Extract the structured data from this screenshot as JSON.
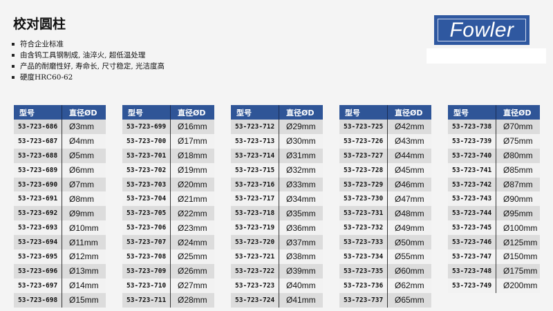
{
  "title": "校对圆柱",
  "bullets": [
    "符合企业标准",
    "由含钨工具钢制成, 油淬火, 超低温处理",
    "产品的耐磨性好, 寿命长, 尺寸稳定, 光洁度高",
    "硬度HRC60-62"
  ],
  "logo_text": "Fowler",
  "colors": {
    "header": "#2f5597",
    "row_dark": "#dcdcdc",
    "row_light": "#f2f2f2",
    "logo": "#2f58a0"
  },
  "headers": {
    "model": "型号",
    "diameter": "直径ØD"
  },
  "tables": [
    [
      [
        "53-723-686",
        "Ø3mm"
      ],
      [
        "53-723-687",
        "Ø4mm"
      ],
      [
        "53-723-688",
        "Ø5mm"
      ],
      [
        "53-723-689",
        "Ø6mm"
      ],
      [
        "53-723-690",
        "Ø7mm"
      ],
      [
        "53-723-691",
        "Ø8mm"
      ],
      [
        "53-723-692",
        "Ø9mm"
      ],
      [
        "53-723-693",
        "Ø10mm"
      ],
      [
        "53-723-694",
        "Ø11mm"
      ],
      [
        "53-723-695",
        "Ø12mm"
      ],
      [
        "53-723-696",
        "Ø13mm"
      ],
      [
        "53-723-697",
        "Ø14mm"
      ],
      [
        "53-723-698",
        "Ø15mm"
      ]
    ],
    [
      [
        "53-723-699",
        "Ø16mm"
      ],
      [
        "53-723-700",
        "Ø17mm"
      ],
      [
        "53-723-701",
        "Ø18mm"
      ],
      [
        "53-723-702",
        "Ø19mm"
      ],
      [
        "53-723-703",
        "Ø20mm"
      ],
      [
        "53-723-704",
        "Ø21mm"
      ],
      [
        "53-723-705",
        "Ø22mm"
      ],
      [
        "53-723-706",
        "Ø23mm"
      ],
      [
        "53-723-707",
        "Ø24mm"
      ],
      [
        "53-723-708",
        "Ø25mm"
      ],
      [
        "53-723-709",
        "Ø26mm"
      ],
      [
        "53-723-710",
        "Ø27mm"
      ],
      [
        "53-723-711",
        "Ø28mm"
      ]
    ],
    [
      [
        "53-723-712",
        "Ø29mm"
      ],
      [
        "53-723-713",
        "Ø30mm"
      ],
      [
        "53-723-714",
        "Ø31mm"
      ],
      [
        "53-723-715",
        "Ø32mm"
      ],
      [
        "53-723-716",
        "Ø33mm"
      ],
      [
        "53-723-717",
        "Ø34mm"
      ],
      [
        "53-723-718",
        "Ø35mm"
      ],
      [
        "53-723-719",
        "Ø36mm"
      ],
      [
        "53-723-720",
        "Ø37mm"
      ],
      [
        "53-723-721",
        "Ø38mm"
      ],
      [
        "53-723-722",
        "Ø39mm"
      ],
      [
        "53-723-723",
        "Ø40mm"
      ],
      [
        "53-723-724",
        "Ø41mm"
      ]
    ],
    [
      [
        "53-723-725",
        "Ø42mm"
      ],
      [
        "53-723-726",
        "Ø43mm"
      ],
      [
        "53-723-727",
        "Ø44mm"
      ],
      [
        "53-723-728",
        "Ø45mm"
      ],
      [
        "53-723-729",
        "Ø46mm"
      ],
      [
        "53-723-730",
        "Ø47mm"
      ],
      [
        "53-723-731",
        "Ø48mm"
      ],
      [
        "53-723-732",
        "Ø49mm"
      ],
      [
        "53-723-733",
        "Ø50mm"
      ],
      [
        "53-723-734",
        "Ø55mm"
      ],
      [
        "53-723-735",
        "Ø60mm"
      ],
      [
        "53-723-736",
        "Ø62mm"
      ],
      [
        "53-723-737",
        "Ø65mm"
      ]
    ],
    [
      [
        "53-723-738",
        "Ø70mm"
      ],
      [
        "53-723-739",
        "Ø75mm"
      ],
      [
        "53-723-740",
        "Ø80mm"
      ],
      [
        "53-723-741",
        "Ø85mm"
      ],
      [
        "53-723-742",
        "Ø87mm"
      ],
      [
        "53-723-743",
        "Ø90mm"
      ],
      [
        "53-723-744",
        "Ø95mm"
      ],
      [
        "53-723-745",
        "Ø100mm"
      ],
      [
        "53-723-746",
        "Ø125mm"
      ],
      [
        "53-723-747",
        "Ø150mm"
      ],
      [
        "53-723-748",
        "Ø175mm"
      ],
      [
        "53-723-749",
        "Ø200mm"
      ]
    ]
  ]
}
